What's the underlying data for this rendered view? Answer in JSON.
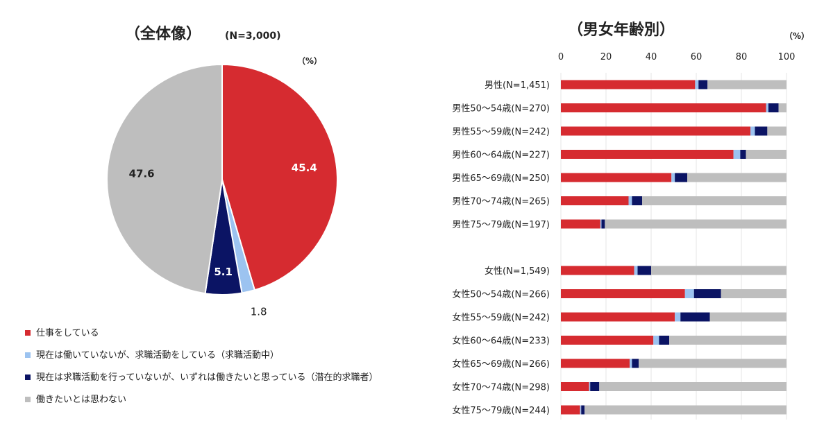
{
  "colors": {
    "working": "#D62B30",
    "seeking": "#9CC3F0",
    "wish": "#0B1464",
    "no_wish": "#BEBEBE"
  },
  "legend": [
    {
      "key": "working",
      "label": "仕事をしている"
    },
    {
      "key": "seeking",
      "label": "現在は働いていないが、求職活動をしている（求職活動中）"
    },
    {
      "key": "wish",
      "label": "現在は求職活動を行っていないが、いずれは働きたいと思っている（潜在的求職者）"
    },
    {
      "key": "no_wish",
      "label": "働きたいとは思わない"
    }
  ],
  "chart_data": [
    {
      "type": "pie",
      "title": "（全体像）",
      "subtitle": "(N=3,000)",
      "unit": "（%）",
      "slices": [
        {
          "key": "working",
          "value": 45.4,
          "label": "45.4"
        },
        {
          "key": "seeking",
          "value": 1.8,
          "label": "1.8"
        },
        {
          "key": "wish",
          "value": 5.1,
          "label": "5.1"
        },
        {
          "key": "no_wish",
          "value": 47.6,
          "label": "47.6"
        }
      ]
    },
    {
      "type": "bar",
      "orientation": "horizontal",
      "stacked": true,
      "title": "（男女年齢別）",
      "unit": "（%）",
      "xlim": [
        0,
        100
      ],
      "xticks": [
        "0",
        "20",
        "40",
        "60",
        "80",
        "100"
      ],
      "grid": true,
      "categories": [
        "男性(N=1,451)",
        "男性50～54歳(N=270)",
        "男性55～59歳(N=242)",
        "男性60～64歳(N=227)",
        "男性65～69歳(N=250)",
        "男性70～74歳(N=265)",
        "男性75～79歳(N=197)",
        "",
        "女性(N=1,549)",
        "女性50～54歳(N=266)",
        "女性55～59歳(N=242)",
        "女性60～64歳(N=233)",
        "女性65～69歳(N=266)",
        "女性70～74歳(N=298)",
        "女性75～79歳(N=244)"
      ],
      "series": [
        {
          "key": "working",
          "values": [
            59.5,
            91,
            84,
            76.5,
            49,
            30,
            17.5,
            null,
            32.5,
            55,
            50.5,
            41,
            30.5,
            12.5,
            8.5
          ]
        },
        {
          "key": "seeking",
          "values": [
            1.5,
            1,
            2,
            3,
            1.5,
            1.5,
            0.5,
            null,
            1.5,
            4,
            2.5,
            2.5,
            1,
            0.5,
            0.5
          ]
        },
        {
          "key": "wish",
          "values": [
            4,
            4.5,
            5.5,
            2.5,
            5.5,
            4.5,
            1.5,
            null,
            6,
            12,
            13,
            4.5,
            3,
            4,
            1.5
          ]
        },
        {
          "key": "no_wish",
          "values": [
            35,
            3.5,
            8.5,
            18,
            44,
            64,
            80.5,
            null,
            60,
            29,
            34,
            52,
            65.5,
            83,
            89.5
          ]
        }
      ]
    }
  ]
}
